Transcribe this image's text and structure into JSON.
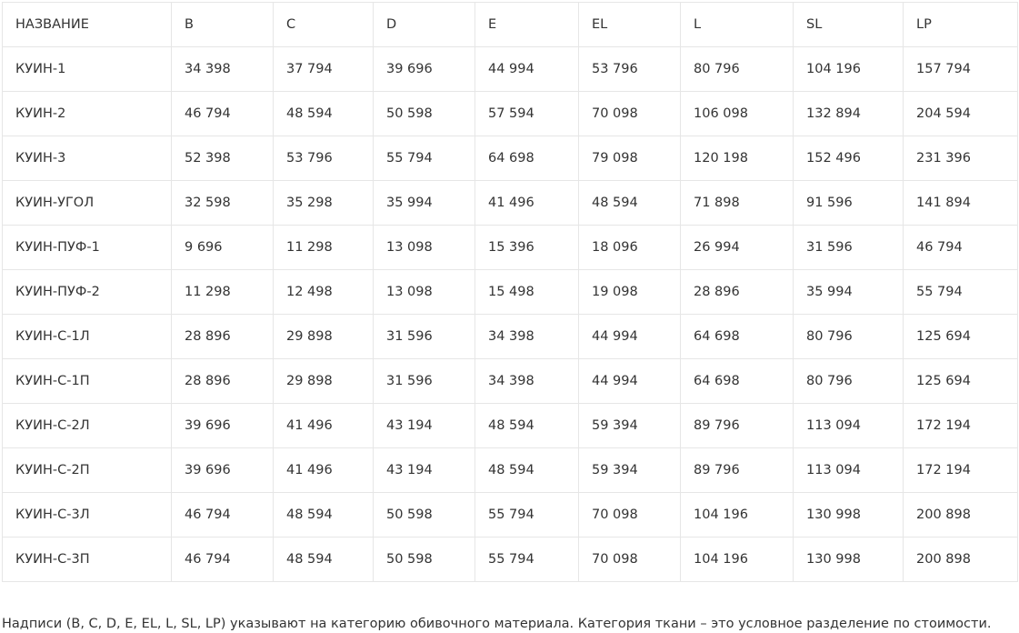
{
  "table": {
    "header": [
      "НАЗВАНИЕ",
      "B",
      "C",
      "D",
      "E",
      "EL",
      "L",
      "SL",
      "LP"
    ],
    "rows": [
      [
        "КУИН-1",
        "34 398",
        "37 794",
        "39 696",
        "44 994",
        "53 796",
        "80 796",
        "104 196",
        "157 794"
      ],
      [
        "КУИН-2",
        "46 794",
        "48 594",
        "50 598",
        "57 594",
        "70 098",
        "106 098",
        "132 894",
        "204 594"
      ],
      [
        "КУИН-3",
        "52 398",
        "53 796",
        "55 794",
        "64 698",
        "79 098",
        "120 198",
        "152 496",
        "231 396"
      ],
      [
        "КУИН-УГОЛ",
        "32 598",
        "35 298",
        "35 994",
        "41 496",
        "48 594",
        "71 898",
        "91 596",
        "141 894"
      ],
      [
        "КУИН-ПУФ-1",
        "9 696",
        "11 298",
        "13 098",
        "15 396",
        "18 096",
        "26 994",
        "31 596",
        "46 794"
      ],
      [
        "КУИН-ПУФ-2",
        "11 298",
        "12 498",
        "13 098",
        "15 498",
        "19 098",
        "28 896",
        "35 994",
        "55 794"
      ],
      [
        "КУИН-С-1Л",
        "28 896",
        "29 898",
        "31 596",
        "34 398",
        "44 994",
        "64 698",
        "80 796",
        "125 694"
      ],
      [
        "КУИН-С-1П",
        "28 896",
        "29 898",
        "31 596",
        "34 398",
        "44 994",
        "64 698",
        "80 796",
        "125 694"
      ],
      [
        "КУИН-С-2Л",
        "39 696",
        "41 496",
        "43 194",
        "48 594",
        "59 394",
        "89 796",
        "113 094",
        "172 194"
      ],
      [
        "КУИН-С-2П",
        "39 696",
        "41 496",
        "43 194",
        "48 594",
        "59 394",
        "89 796",
        "113 094",
        "172 194"
      ],
      [
        "КУИН-С-3Л",
        "46 794",
        "48 594",
        "50 598",
        "55 794",
        "70 098",
        "104 196",
        "130 998",
        "200 898"
      ],
      [
        "КУИН-С-3П",
        "46 794",
        "48 594",
        "50 598",
        "55 794",
        "70 098",
        "104 196",
        "130 998",
        "200 898"
      ]
    ]
  },
  "footnote": "Надписи (B, C, D, E, EL, L, SL, LP) указывают на категорию обивочного материала. Категория ткани – это условное разделение по стоимости."
}
